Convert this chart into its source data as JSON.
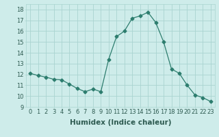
{
  "x": [
    0,
    1,
    2,
    3,
    4,
    5,
    6,
    7,
    8,
    9,
    10,
    11,
    12,
    13,
    14,
    15,
    16,
    17,
    18,
    19,
    20,
    21,
    22,
    23
  ],
  "y": [
    12.1,
    11.9,
    11.75,
    11.55,
    11.5,
    11.1,
    10.7,
    10.4,
    10.65,
    10.4,
    13.4,
    15.5,
    16.0,
    17.2,
    17.4,
    17.75,
    16.8,
    15.0,
    12.5,
    12.1,
    11.0,
    10.1,
    9.85,
    9.5
  ],
  "line_color": "#2d7d6e",
  "marker": "D",
  "marker_size": 2.5,
  "bg_color": "#ceecea",
  "grid_color": "#aad4d0",
  "xlabel": "Humidex (Indice chaleur)",
  "xlim": [
    -0.5,
    23.5
  ],
  "ylim": [
    9,
    18.5
  ],
  "yticks": [
    9,
    10,
    11,
    12,
    13,
    14,
    15,
    16,
    17,
    18
  ],
  "xticks": [
    0,
    1,
    2,
    3,
    4,
    5,
    6,
    7,
    8,
    9,
    10,
    11,
    12,
    13,
    14,
    15,
    16,
    17,
    18,
    19,
    20,
    21,
    22,
    23
  ],
  "tick_label_size": 6,
  "xlabel_size": 7.5
}
